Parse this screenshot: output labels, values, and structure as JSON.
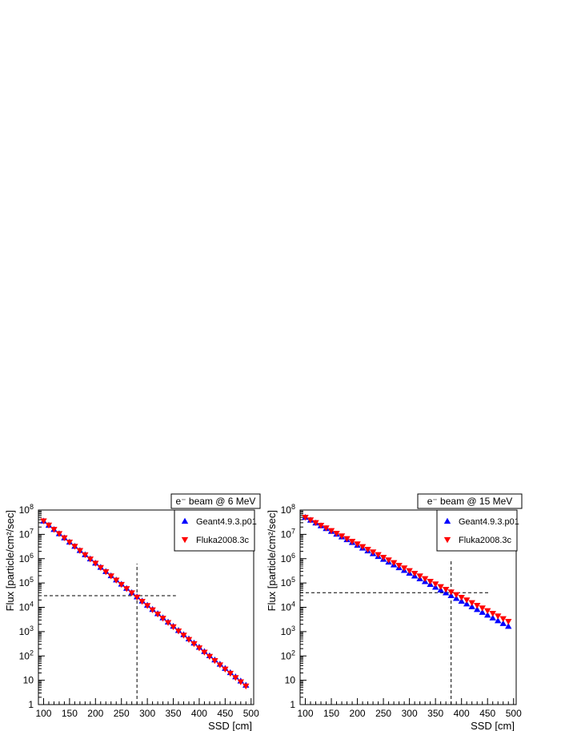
{
  "chart_data": [
    {
      "type": "scatter",
      "title": "e⁻ beam @ 6 MeV",
      "xlabel": "SSD [cm]",
      "ylabel": "Flux [particle/cm²/sec]",
      "xlim": [
        90,
        505
      ],
      "ylim": [
        1,
        100000000
      ],
      "yscale": "log",
      "grid": false,
      "legend_position": "top-right",
      "x_ticks": [
        "100",
        "150",
        "200",
        "250",
        "300",
        "350",
        "400",
        "450",
        "500"
      ],
      "y_ticks": [
        "1",
        "10",
        "10²",
        "10³",
        "10⁴",
        "10⁵",
        "10⁶",
        "10⁷",
        "10⁸"
      ],
      "reference_lines": {
        "x": 280,
        "y": 30000
      },
      "series": [
        {
          "name": "Geant4.9.3.p01",
          "marker": "triangle-up",
          "color": "#0000ff",
          "x_start": 100,
          "x_step": 10,
          "log10_start": 7.55,
          "log10_end": 0.8
        },
        {
          "name": "Fluka2008.3c",
          "marker": "triangle-down",
          "color": "#ff0000",
          "x_start": 100,
          "x_step": 10,
          "log10_start": 7.55,
          "log10_end": 0.76
        }
      ]
    },
    {
      "type": "scatter",
      "title": "e⁻ beam @ 15 MeV",
      "xlabel": "SSD [cm]",
      "ylabel": "Flux [particle/cm²/sec]",
      "xlim": [
        90,
        505
      ],
      "ylim": [
        1,
        100000000
      ],
      "yscale": "log",
      "grid": false,
      "legend_position": "top-right",
      "x_ticks": [
        "100",
        "150",
        "200",
        "250",
        "300",
        "350",
        "400",
        "450",
        "500"
      ],
      "y_ticks": [
        "1",
        "10",
        "10²",
        "10³",
        "10⁴",
        "10⁵",
        "10⁶",
        "10⁷",
        "10⁸"
      ],
      "reference_lines": {
        "x": 380,
        "y": 40000
      },
      "series": [
        {
          "name": "Geant4.9.3.p01",
          "marker": "triangle-up",
          "color": "#0000ff",
          "x_start": 100,
          "x_step": 10,
          "log10_start": 7.7,
          "log10_end": 3.22
        },
        {
          "name": "Fluka2008.3c",
          "marker": "triangle-down",
          "color": "#ff0000",
          "x_start": 100,
          "x_step": 10,
          "log10_start": 7.7,
          "log10_end": 3.42
        }
      ]
    }
  ]
}
